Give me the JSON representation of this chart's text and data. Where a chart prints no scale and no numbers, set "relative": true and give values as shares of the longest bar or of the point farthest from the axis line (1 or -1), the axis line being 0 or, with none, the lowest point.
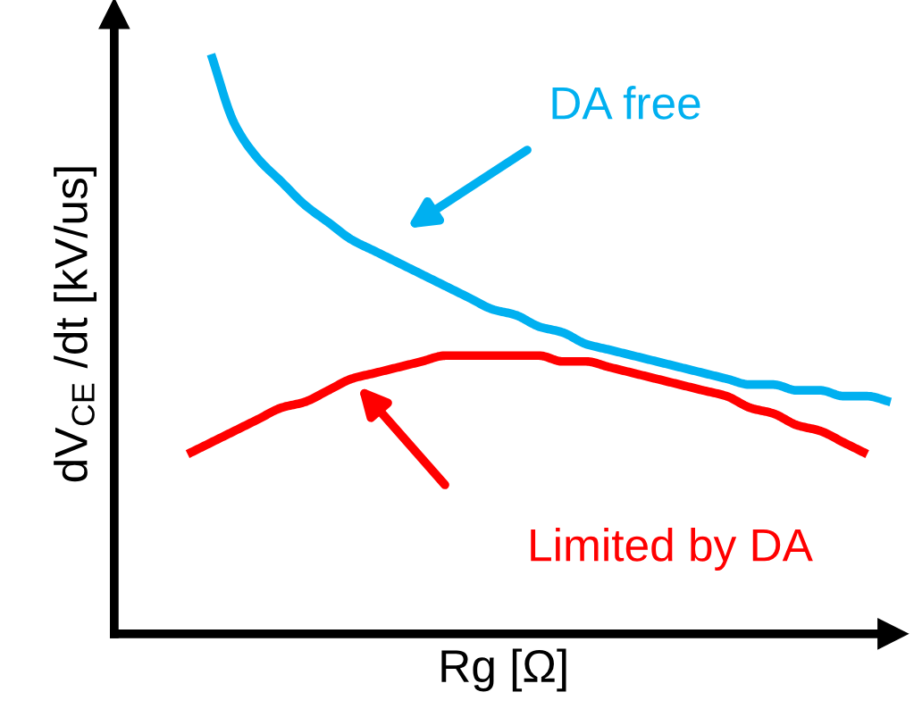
{
  "chart_data": {
    "type": "line",
    "relative": true,
    "xlabel": "Rg [Ω]",
    "ylabel": "dV$_{CE}$ /dt [kV/us]",
    "legend": false,
    "tick_labels": false,
    "categories": [
      null,
      null,
      null,
      null,
      null,
      null,
      null,
      null,
      null,
      null,
      null,
      null,
      null,
      null,
      null,
      null,
      null,
      null,
      null,
      null,
      null,
      null,
      null,
      null,
      null,
      null,
      null,
      null,
      null,
      null,
      null
    ],
    "series": [
      {
        "name": "DA free",
        "color": "#00b0f0",
        "values": [
          null,
          1.0,
          0.88,
          0.82,
          0.78,
          0.74,
          0.71,
          0.68,
          0.66,
          0.64,
          0.62,
          0.6,
          0.58,
          0.56,
          0.55,
          0.53,
          0.52,
          0.5,
          0.49,
          0.48,
          0.47,
          0.46,
          0.45,
          0.44,
          0.43,
          0.43,
          0.42,
          0.42,
          0.41,
          0.41,
          0.4
        ]
      },
      {
        "name": "Limited by DA",
        "color": "#ff0000",
        "values": [
          0.31,
          0.33,
          0.35,
          0.37,
          0.39,
          0.4,
          0.42,
          0.44,
          0.45,
          0.46,
          0.47,
          0.48,
          0.48,
          0.48,
          0.48,
          0.48,
          0.47,
          0.47,
          0.46,
          0.45,
          0.44,
          0.43,
          0.42,
          0.41,
          0.39,
          0.38,
          0.36,
          0.35,
          0.33,
          0.31,
          null
        ]
      }
    ]
  }
}
